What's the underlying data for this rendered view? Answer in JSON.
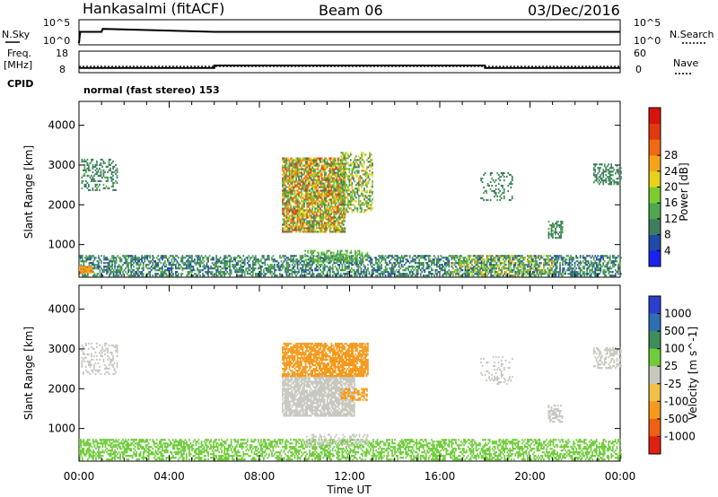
{
  "header": {
    "station": "Hankasalmi (fitACF)",
    "beam": "Beam 06",
    "date": "03/Dec/2016"
  },
  "strip_labels": {
    "nsky": "N.Sky",
    "nsearch": "N.Search",
    "freq_top": "Freq.",
    "freq_unit": "[MHz]",
    "nave": "Nave",
    "cpid": "CPID",
    "cpid_value": "normal (fast stereo) 153",
    "noise_ticks_left": [
      "10^5",
      "10^0"
    ],
    "noise_ticks_right": [
      "10^5",
      "10^0"
    ],
    "freq_ticks": [
      "18",
      "8"
    ],
    "nave_ticks": [
      "60",
      "0"
    ]
  },
  "chart_data": [
    {
      "type": "line",
      "title": "",
      "panel": "noise",
      "x_hours": [
        0,
        0.05,
        1.0,
        1.05,
        6.0,
        18.0,
        24.0
      ],
      "series": [
        {
          "name": "N.Sky",
          "values": [
            0.0,
            2.6,
            2.6,
            3.3,
            2.6,
            2.6,
            2.6
          ]
        }
      ]
    },
    {
      "type": "line",
      "title": "",
      "panel": "frequency_nave",
      "x_hours": [
        0,
        6,
        18,
        24
      ],
      "series": [
        {
          "name": "Freq.",
          "values": [
            10.5,
            10.5,
            10.5,
            10.5
          ]
        },
        {
          "name": "Nave",
          "values": [
            10,
            18,
            10,
            10
          ]
        }
      ]
    },
    {
      "type": "heatmap",
      "title": "",
      "panel": "power",
      "xlabel": "",
      "ylabel": "Slant Range [km]",
      "xlim": [
        0,
        24
      ],
      "ylim": [
        180,
        4600
      ],
      "yticks": [
        1000,
        2000,
        3000,
        4000
      ],
      "colorbar": {
        "label": "Power [dB]",
        "ticks": [
          "4",
          "8",
          "12",
          "16",
          "20",
          "24",
          "28"
        ],
        "colors": [
          "#1b22f0",
          "#1f4aa8",
          "#3f7d60",
          "#4fa84f",
          "#7dcc2f",
          "#e6d21a",
          "#f5a41a",
          "#ef6a12",
          "#e13a10",
          "#d9140e"
        ]
      },
      "regions": [
        {
          "t": [
            0.0,
            24.0
          ],
          "r": [
            200,
            700
          ],
          "density": 0.55,
          "v": [
            4,
            12
          ]
        },
        {
          "t": [
            0.0,
            0.6
          ],
          "r": [
            280,
            420
          ],
          "density": 1.0,
          "v": [
            18,
            22
          ]
        },
        {
          "t": [
            0.1,
            1.7
          ],
          "r": [
            2350,
            3150
          ],
          "density": 0.35,
          "v": [
            6,
            10
          ]
        },
        {
          "t": [
            9.0,
            11.8
          ],
          "r": [
            1300,
            3150
          ],
          "density": 0.8,
          "v": [
            6,
            26
          ]
        },
        {
          "t": [
            11.6,
            13.0
          ],
          "r": [
            1800,
            3300
          ],
          "density": 0.5,
          "v": [
            6,
            20
          ]
        },
        {
          "t": [
            10.0,
            12.8
          ],
          "r": [
            550,
            850
          ],
          "density": 0.45,
          "v": [
            8,
            14
          ]
        },
        {
          "t": [
            17.8,
            19.2
          ],
          "r": [
            2100,
            2800
          ],
          "density": 0.2,
          "v": [
            6,
            10
          ]
        },
        {
          "t": [
            20.8,
            21.4
          ],
          "r": [
            1150,
            1600
          ],
          "density": 0.6,
          "v": [
            6,
            10
          ]
        },
        {
          "t": [
            22.8,
            24.0
          ],
          "r": [
            2500,
            3000
          ],
          "density": 0.45,
          "v": [
            6,
            10
          ]
        },
        {
          "t": [
            16.5,
            21.0
          ],
          "r": [
            200,
            700
          ],
          "density": 0.3,
          "v": [
            10,
            20
          ]
        }
      ]
    },
    {
      "type": "heatmap",
      "title": "",
      "panel": "velocity",
      "xlabel": "Time UT",
      "ylabel": "Slant Range [km]",
      "xlim": [
        0,
        24
      ],
      "ylim": [
        180,
        4600
      ],
      "xticks": [
        "00:00",
        "04:00",
        "08:00",
        "12:00",
        "16:00",
        "20:00",
        "00:00"
      ],
      "yticks": [
        1000,
        2000,
        3000,
        4000
      ],
      "colorbar": {
        "label": "Velocity [m s^-1]",
        "ticks": [
          "1000",
          "500",
          "100",
          "25",
          "-25",
          "-100",
          "-500",
          "-1000"
        ],
        "colors": [
          "#2a3fcf",
          "#2d6fb0",
          "#3f8d5a",
          "#6fcc3a",
          "#c8c8c0",
          "#f0c048",
          "#f59a1c",
          "#ef6012",
          "#e02010"
        ]
      },
      "regions": [
        {
          "t": [
            0.0,
            24.0
          ],
          "r": [
            200,
            700
          ],
          "density": 0.5,
          "v": [
            25,
            100
          ]
        },
        {
          "t": [
            0.1,
            1.7
          ],
          "r": [
            2350,
            3150
          ],
          "density": 0.3,
          "v": [
            -25,
            25
          ]
        },
        {
          "t": [
            9.0,
            12.2
          ],
          "r": [
            1300,
            2300
          ],
          "density": 0.8,
          "v": [
            -25,
            25
          ]
        },
        {
          "t": [
            9.0,
            12.8
          ],
          "r": [
            2300,
            3150
          ],
          "density": 0.75,
          "v": [
            -500,
            -100
          ]
        },
        {
          "t": [
            11.6,
            12.8
          ],
          "r": [
            1700,
            2000
          ],
          "density": 0.5,
          "v": [
            -500,
            -100
          ]
        },
        {
          "t": [
            10.0,
            12.8
          ],
          "r": [
            550,
            850
          ],
          "density": 0.4,
          "v": [
            -25,
            25
          ]
        },
        {
          "t": [
            17.8,
            19.2
          ],
          "r": [
            2100,
            2800
          ],
          "density": 0.2,
          "v": [
            -25,
            25
          ]
        },
        {
          "t": [
            20.8,
            21.4
          ],
          "r": [
            1150,
            1600
          ],
          "density": 0.55,
          "v": [
            -25,
            25
          ]
        },
        {
          "t": [
            22.8,
            24.0
          ],
          "r": [
            2500,
            3000
          ],
          "density": 0.4,
          "v": [
            -25,
            25
          ]
        }
      ]
    }
  ]
}
